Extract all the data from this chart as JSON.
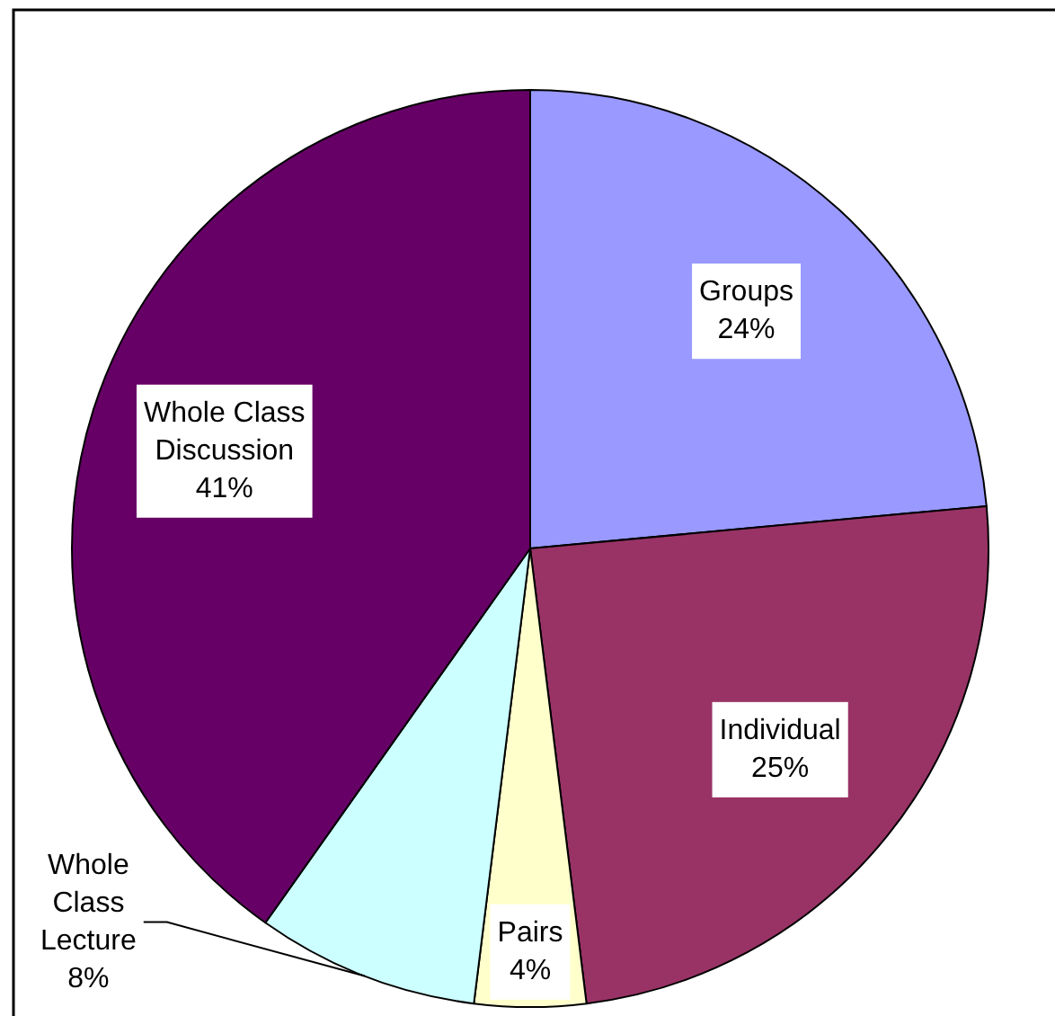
{
  "chart_data": {
    "type": "pie",
    "categories": [
      "Groups",
      "Individual",
      "Pairs",
      "Whole Class Lecture",
      "Whole Class Discussion"
    ],
    "values": [
      24,
      25,
      4,
      8,
      41
    ],
    "colors": [
      "#9999ff",
      "#993366",
      "#ffffcc",
      "#ccffff",
      "#660066"
    ],
    "value_labels": [
      "24%",
      "25%",
      "4%",
      "8%",
      "41%"
    ]
  }
}
